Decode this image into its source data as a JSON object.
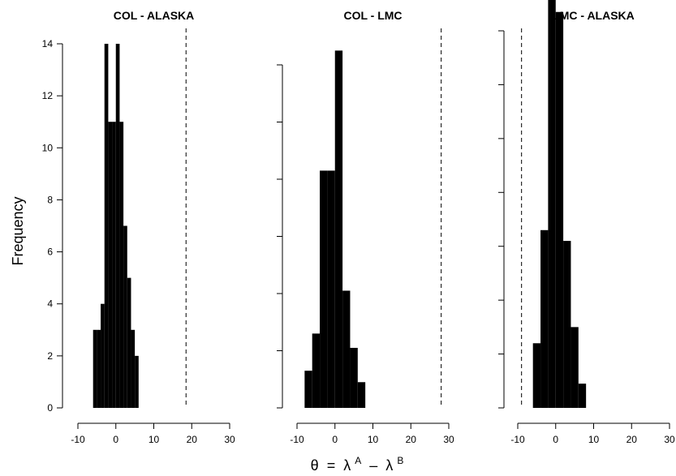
{
  "shared": {
    "ylabel": "Frequency",
    "xlabel": {
      "theta": "θ",
      "eq": " = ",
      "lambda1": "λ",
      "supA": "A",
      "minus": " – ",
      "lambda2": "λ",
      "supB": "B"
    }
  },
  "chart_data": [
    {
      "type": "bar",
      "title": "COL - ALASKA",
      "bin_edges": [
        -6,
        -5,
        -4,
        -3,
        -2,
        -1,
        0,
        1,
        2,
        3,
        4,
        5,
        6
      ],
      "counts": [
        3,
        3,
        4,
        14,
        11,
        11,
        14,
        11,
        7,
        5,
        3,
        2
      ],
      "xlim": [
        -10,
        30
      ],
      "xticks": [
        -10,
        0,
        10,
        20,
        30
      ],
      "ylim": [
        0,
        14
      ],
      "yticks": [
        0,
        2,
        4,
        6,
        8,
        10,
        12,
        14
      ],
      "ytick_labels_shown": true,
      "reference_line": 18.5
    },
    {
      "type": "bar",
      "title": "COL - LMC",
      "bin_edges": [
        -8,
        -6,
        -4,
        -2,
        0,
        2,
        4,
        6,
        8
      ],
      "counts": [
        1.3,
        2.6,
        8.3,
        8.3,
        12.5,
        4.1,
        2.1,
        0.9
      ],
      "xlim": [
        -10,
        30
      ],
      "xticks": [
        -10,
        0,
        10,
        20,
        30
      ],
      "ylim": [
        0,
        12
      ],
      "yticks": [
        0,
        2,
        4,
        6,
        8,
        10,
        12
      ],
      "ytick_labels_shown": false,
      "reference_line": 28
    },
    {
      "type": "bar",
      "title": "LMC - ALASKA",
      "bin_edges": [
        -6,
        -4,
        -2,
        0,
        2,
        4,
        6,
        8
      ],
      "counts": [
        2.4,
        6.6,
        17.1,
        14.7,
        6.2,
        3.0,
        0.9
      ],
      "xlim": [
        -10,
        30
      ],
      "xticks": [
        -10,
        0,
        10,
        20,
        30
      ],
      "ylim": [
        0,
        14
      ],
      "yticks": [
        0,
        2,
        4,
        6,
        8,
        10,
        12,
        14
      ],
      "ytick_labels_shown": false,
      "reference_line": -9
    }
  ]
}
